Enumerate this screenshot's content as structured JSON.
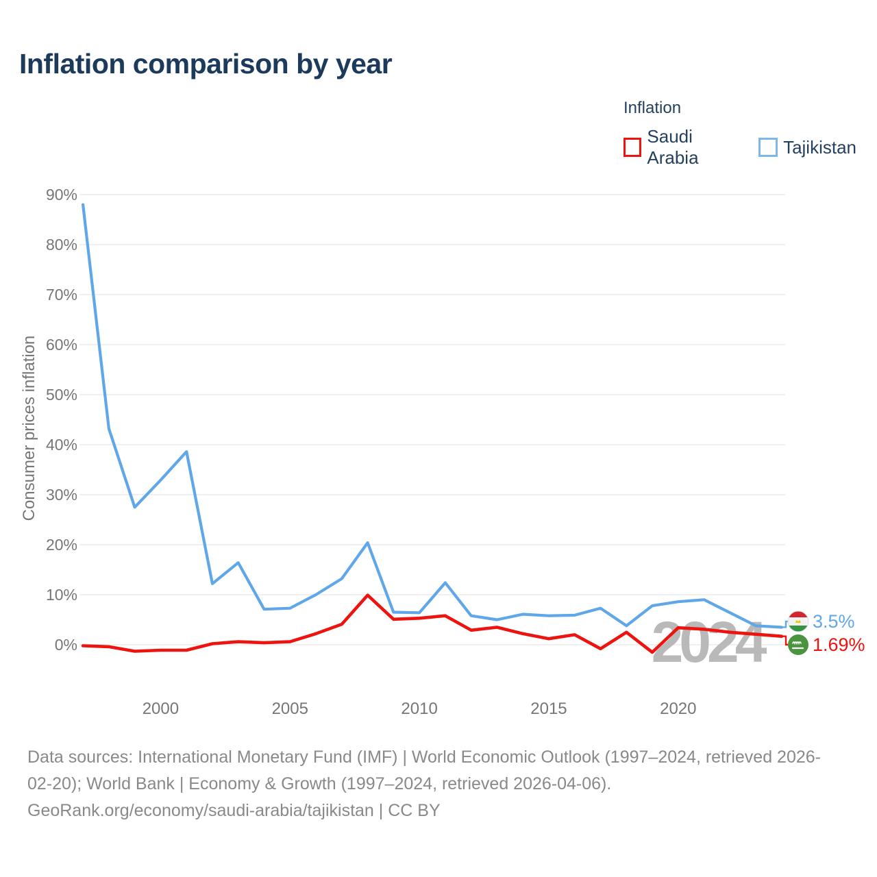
{
  "page": {
    "title": "Inflation comparison by year"
  },
  "legend": {
    "title": "Inflation",
    "items": [
      {
        "label": "Saudi Arabia",
        "color": "#ed130e"
      },
      {
        "label": "Tajikistan",
        "color": "#5fa7e8"
      }
    ]
  },
  "chart_data": {
    "type": "line",
    "title": "Inflation comparison by year",
    "xlabel": "",
    "ylabel": "Consumer prices inflation",
    "x": [
      1997,
      1998,
      1999,
      2000,
      2001,
      2002,
      2003,
      2004,
      2005,
      2006,
      2007,
      2008,
      2009,
      2010,
      2011,
      2012,
      2013,
      2014,
      2015,
      2016,
      2017,
      2018,
      2019,
      2020,
      2021,
      2022,
      2023,
      2024
    ],
    "series": [
      {
        "name": "Saudi Arabia",
        "color": "#ed130e",
        "flag": "saudi-arabia-flag",
        "end_label": "1.69%",
        "values": [
          -0.2,
          -0.4,
          -1.3,
          -1.1,
          -1.1,
          0.2,
          0.6,
          0.4,
          0.6,
          2.2,
          4.1,
          9.9,
          5.1,
          5.3,
          5.8,
          2.9,
          3.5,
          2.2,
          1.2,
          2.0,
          -0.8,
          2.5,
          -1.5,
          3.4,
          3.1,
          2.5,
          2.1,
          1.69
        ]
      },
      {
        "name": "Tajikistan",
        "color": "#5fa7e8",
        "flag": "tajikistan-flag",
        "end_label": "3.5%",
        "values": [
          88.0,
          43.2,
          27.5,
          32.9,
          38.6,
          12.2,
          16.4,
          7.1,
          7.3,
          10.0,
          13.2,
          20.4,
          6.5,
          6.4,
          12.4,
          5.8,
          5.0,
          6.1,
          5.8,
          5.9,
          7.3,
          3.8,
          7.8,
          8.6,
          9.0,
          6.4,
          3.8,
          3.5
        ]
      }
    ],
    "ylim": [
      0,
      90
    ],
    "yticks": [
      "0%",
      "10%",
      "20%",
      "30%",
      "40%",
      "50%",
      "60%",
      "70%",
      "80%",
      "90%"
    ],
    "xticks": [
      2000,
      2005,
      2010,
      2015,
      2020
    ],
    "grid": "horizontal",
    "legend_position": "top-right",
    "watermark": "2024"
  },
  "footer": {
    "lines": [
      "Data sources: International Monetary Fund (IMF) | World Economic Outlook (1997–2024, retrieved 2026-",
      "02-20); World Bank | Economy & Growth (1997–2024, retrieved 2026-04-06).",
      "GeoRank.org/economy/saudi-arabia/tajikistan | CC BY"
    ]
  },
  "colors": {
    "title_text": "#1c3a5c",
    "legend_text": "#24405e",
    "axis_text": "#767676",
    "gridline": "#ececec",
    "watermark": "#b9b9b9",
    "footer_text": "#898989",
    "saudi_red": "#ed130e",
    "tajik_blue": "#5fa7e8"
  }
}
